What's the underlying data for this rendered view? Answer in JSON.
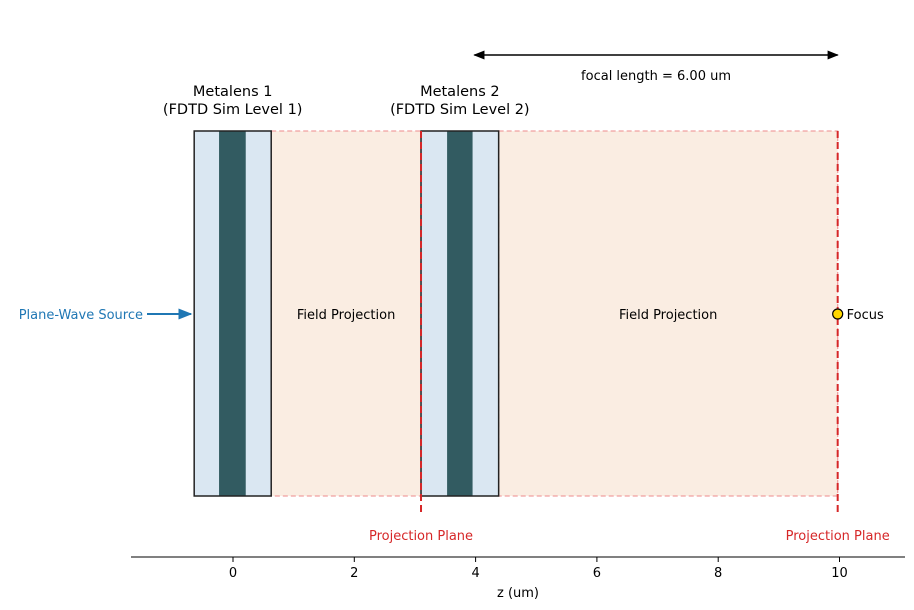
{
  "axis": {
    "label": "z (um)",
    "xlim": [
      -1.69,
      11.07
    ],
    "ticks": [
      0,
      2,
      4,
      6,
      8,
      10
    ],
    "tick_labels": [
      "0",
      "2",
      "4",
      "6",
      "8",
      "10"
    ]
  },
  "metalenses": [
    {
      "title": "Metalens 1",
      "subtitle": "(FDTD Sim Level 1)",
      "z_range": [
        -0.64,
        0.63
      ],
      "core_range": [
        -0.23,
        0.21
      ]
    },
    {
      "title": "Metalens 2",
      "subtitle": "(FDTD Sim Level 2)",
      "z_range": [
        3.1,
        4.38
      ],
      "core_range": [
        3.53,
        3.95
      ]
    }
  ],
  "projections": [
    {
      "label": "Field Projection",
      "z_range": [
        0.63,
        3.1
      ]
    },
    {
      "label": "Field Projection",
      "z_range": [
        4.38,
        9.97
      ]
    }
  ],
  "projection_planes": [
    {
      "label": "Projection Plane",
      "z": 3.1
    },
    {
      "label": "Projection Plane",
      "z": 9.97
    }
  ],
  "source": {
    "label": "Plane-Wave Source"
  },
  "focus": {
    "label": "Focus",
    "z": 9.97
  },
  "focal_length": {
    "label": "focal length = 6.00 um",
    "z_range": [
      3.98,
      9.97
    ]
  },
  "colors": {
    "lens_light": "#dae7f2",
    "lens_dark": "#325b61",
    "projection_fill": "#faede2",
    "projection_edge": "#f0a0a0",
    "plane": "#d62728",
    "source": "#1f77b4",
    "focus": "#ffd700"
  }
}
